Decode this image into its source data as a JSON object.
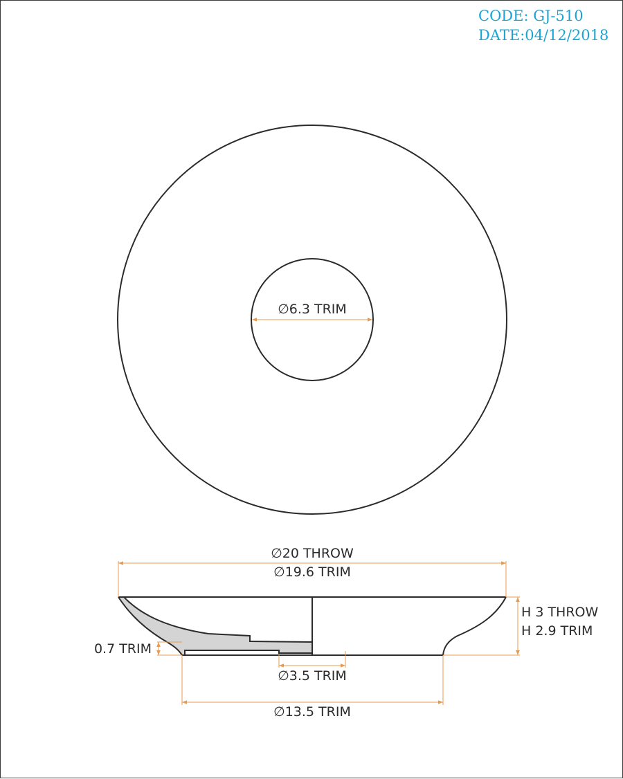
{
  "header": {
    "code": "CODE: GJ-510",
    "date": "DATE:04/12/2018"
  },
  "top_view": {
    "inner_diameter_label": "∅6.3 TRIM"
  },
  "side_view": {
    "outer_throw_label": "∅20 THROW",
    "outer_trim_label": "∅19.6 TRIM",
    "height_throw_label": "H 3 THROW",
    "height_trim_label": "H 2.9 TRIM",
    "base_thickness_label": "0.7 TRIM",
    "hole_diameter_label": "∅3.5 TRIM",
    "foot_diameter_label": "∅13.5 TRIM"
  },
  "colors": {
    "header_text": "#1aa3d4",
    "dimension_lines": "#e59b52",
    "outline": "#2b2b2b",
    "section_fill": "#d4d4d4"
  }
}
